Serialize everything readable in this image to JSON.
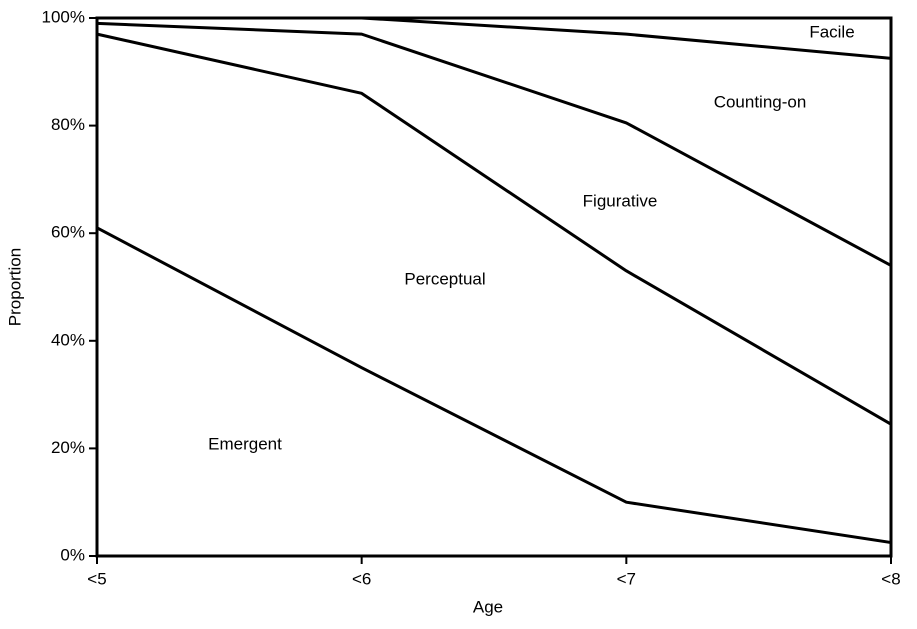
{
  "chart_data": {
    "type": "stacked-area",
    "x_label": "Age",
    "y_label": "Proportion",
    "categories": [
      "<5",
      "<6",
      "<7",
      "<8"
    ],
    "series": [
      {
        "name": "Emergent",
        "color": "#000000",
        "values": [
          61,
          35,
          10,
          2.5
        ]
      },
      {
        "name": "Perceptual",
        "color": "#000000",
        "values": [
          36,
          51,
          43,
          22
        ]
      },
      {
        "name": "Figurative",
        "color": "#000000",
        "values": [
          2,
          11,
          27.5,
          29.5
        ]
      },
      {
        "name": "Counting-on",
        "color": "#000000",
        "values": [
          1,
          3,
          16.5,
          38.5
        ]
      },
      {
        "name": "Facile",
        "color": "#000000",
        "values": [
          0,
          0,
          3,
          7.5
        ]
      }
    ],
    "ylim": [
      0,
      100
    ],
    "yticks": [
      {
        "value": 0,
        "label": "0%"
      },
      {
        "value": 20,
        "label": "20%"
      },
      {
        "value": 40,
        "label": "40%"
      },
      {
        "value": 60,
        "label": "60%"
      },
      {
        "value": 80,
        "label": "80%"
      },
      {
        "value": 100,
        "label": "100%"
      }
    ]
  }
}
